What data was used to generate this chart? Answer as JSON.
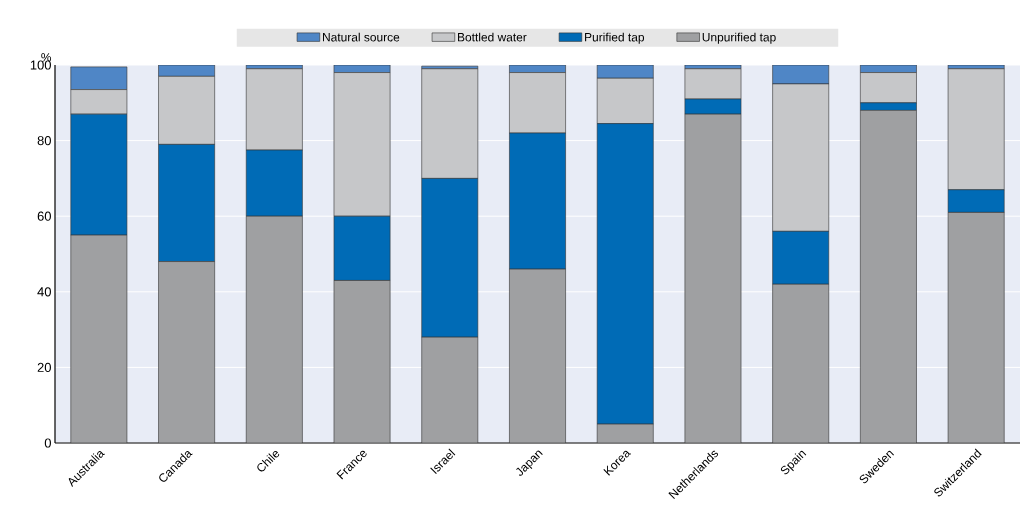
{
  "chart_data": {
    "type": "bar",
    "stacked": true,
    "ylabel": "%",
    "categories": [
      "Australia",
      "Canada",
      "Chile",
      "France",
      "Israel",
      "Japan",
      "Korea",
      "Netherlands",
      "Spain",
      "Sweden",
      "Switzerland"
    ],
    "series": [
      {
        "name": "Unpurified tap",
        "color": "#9fa0a2",
        "values": [
          55,
          48,
          60,
          43,
          28,
          46,
          5,
          87,
          42,
          88,
          61
        ]
      },
      {
        "name": "Purified tap",
        "color": "#006bb6",
        "values": [
          32,
          31,
          17.5,
          17,
          42,
          36,
          79.5,
          4,
          14,
          2,
          6
        ]
      },
      {
        "name": "Bottled water",
        "color": "#c6c7c9",
        "values": [
          6.5,
          18,
          21.5,
          38,
          29,
          16,
          12,
          8,
          39,
          8,
          32
        ]
      },
      {
        "name": "Natural source",
        "color": "#4f86c6",
        "values": [
          6,
          3,
          1,
          2,
          0.7,
          2,
          3.5,
          1,
          5,
          2,
          1
        ]
      }
    ],
    "ylim": [
      0,
      100
    ],
    "yticks": [
      0,
      20,
      40,
      60,
      80,
      100
    ],
    "grid": "y",
    "legend": "top"
  }
}
